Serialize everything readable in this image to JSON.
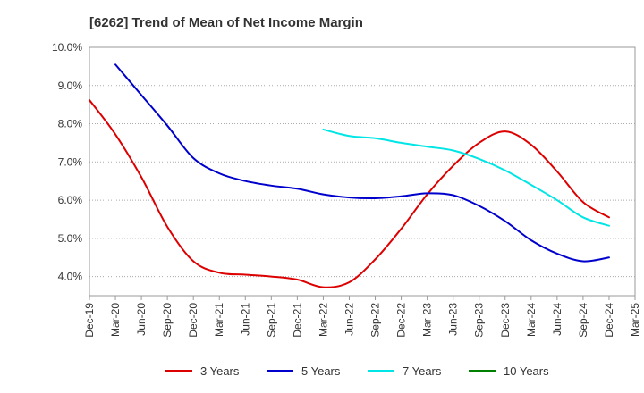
{
  "chart_data": {
    "type": "line",
    "title": "[6262]  Trend of Mean of Net Income Margin",
    "xlabel": "",
    "ylabel": "",
    "x": [
      "Dec-19",
      "Mar-20",
      "Jun-20",
      "Sep-20",
      "Dec-20",
      "Mar-21",
      "Jun-21",
      "Sep-21",
      "Dec-21",
      "Mar-22",
      "Jun-22",
      "Sep-22",
      "Dec-22",
      "Mar-23",
      "Jun-23",
      "Sep-23",
      "Dec-23",
      "Mar-24",
      "Jun-24",
      "Sep-24",
      "Dec-24"
    ],
    "x_ticks": [
      "Dec-19",
      "Mar-20",
      "Jun-20",
      "Sep-20",
      "Dec-20",
      "Mar-21",
      "Jun-21",
      "Sep-21",
      "Dec-21",
      "Mar-22",
      "Jun-22",
      "Sep-22",
      "Dec-22",
      "Mar-23",
      "Jun-23",
      "Sep-23",
      "Dec-23",
      "Mar-24",
      "Jun-24",
      "Sep-24",
      "Dec-24",
      "Mar-25"
    ],
    "ylim": [
      3.5,
      10.0
    ],
    "y_ticks": [
      4.0,
      5.0,
      6.0,
      7.0,
      8.0,
      9.0,
      10.0
    ],
    "y_tick_labels": [
      "4.0%",
      "5.0%",
      "6.0%",
      "7.0%",
      "8.0%",
      "9.0%",
      "10.0%"
    ],
    "grid": "horizontal dotted",
    "legend_position": "bottom",
    "series": [
      {
        "name": "3 Years",
        "color": "#dd0000",
        "values": [
          8.62,
          7.72,
          6.6,
          5.3,
          4.4,
          4.1,
          4.05,
          4.0,
          3.92,
          3.72,
          3.85,
          4.45,
          5.25,
          6.15,
          6.9,
          7.5,
          7.8,
          7.45,
          6.75,
          5.95,
          5.55
        ]
      },
      {
        "name": "5 Years",
        "color": "#0000cc",
        "values": [
          null,
          9.55,
          8.75,
          7.95,
          7.1,
          6.7,
          6.5,
          6.38,
          6.3,
          6.15,
          6.07,
          6.05,
          6.1,
          6.18,
          6.13,
          5.85,
          5.45,
          4.95,
          4.6,
          4.4,
          4.5
        ]
      },
      {
        "name": "7 Years",
        "color": "#00e5e5",
        "values": [
          null,
          null,
          null,
          null,
          null,
          null,
          null,
          null,
          null,
          7.85,
          7.68,
          7.62,
          7.5,
          7.4,
          7.3,
          7.08,
          6.78,
          6.4,
          6.0,
          5.55,
          5.33
        ]
      },
      {
        "name": "10 Years",
        "color": "#008000",
        "values": [
          null,
          null,
          null,
          null,
          null,
          null,
          null,
          null,
          null,
          null,
          null,
          null,
          null,
          null,
          null,
          null,
          null,
          null,
          null,
          null,
          null
        ]
      }
    ]
  }
}
